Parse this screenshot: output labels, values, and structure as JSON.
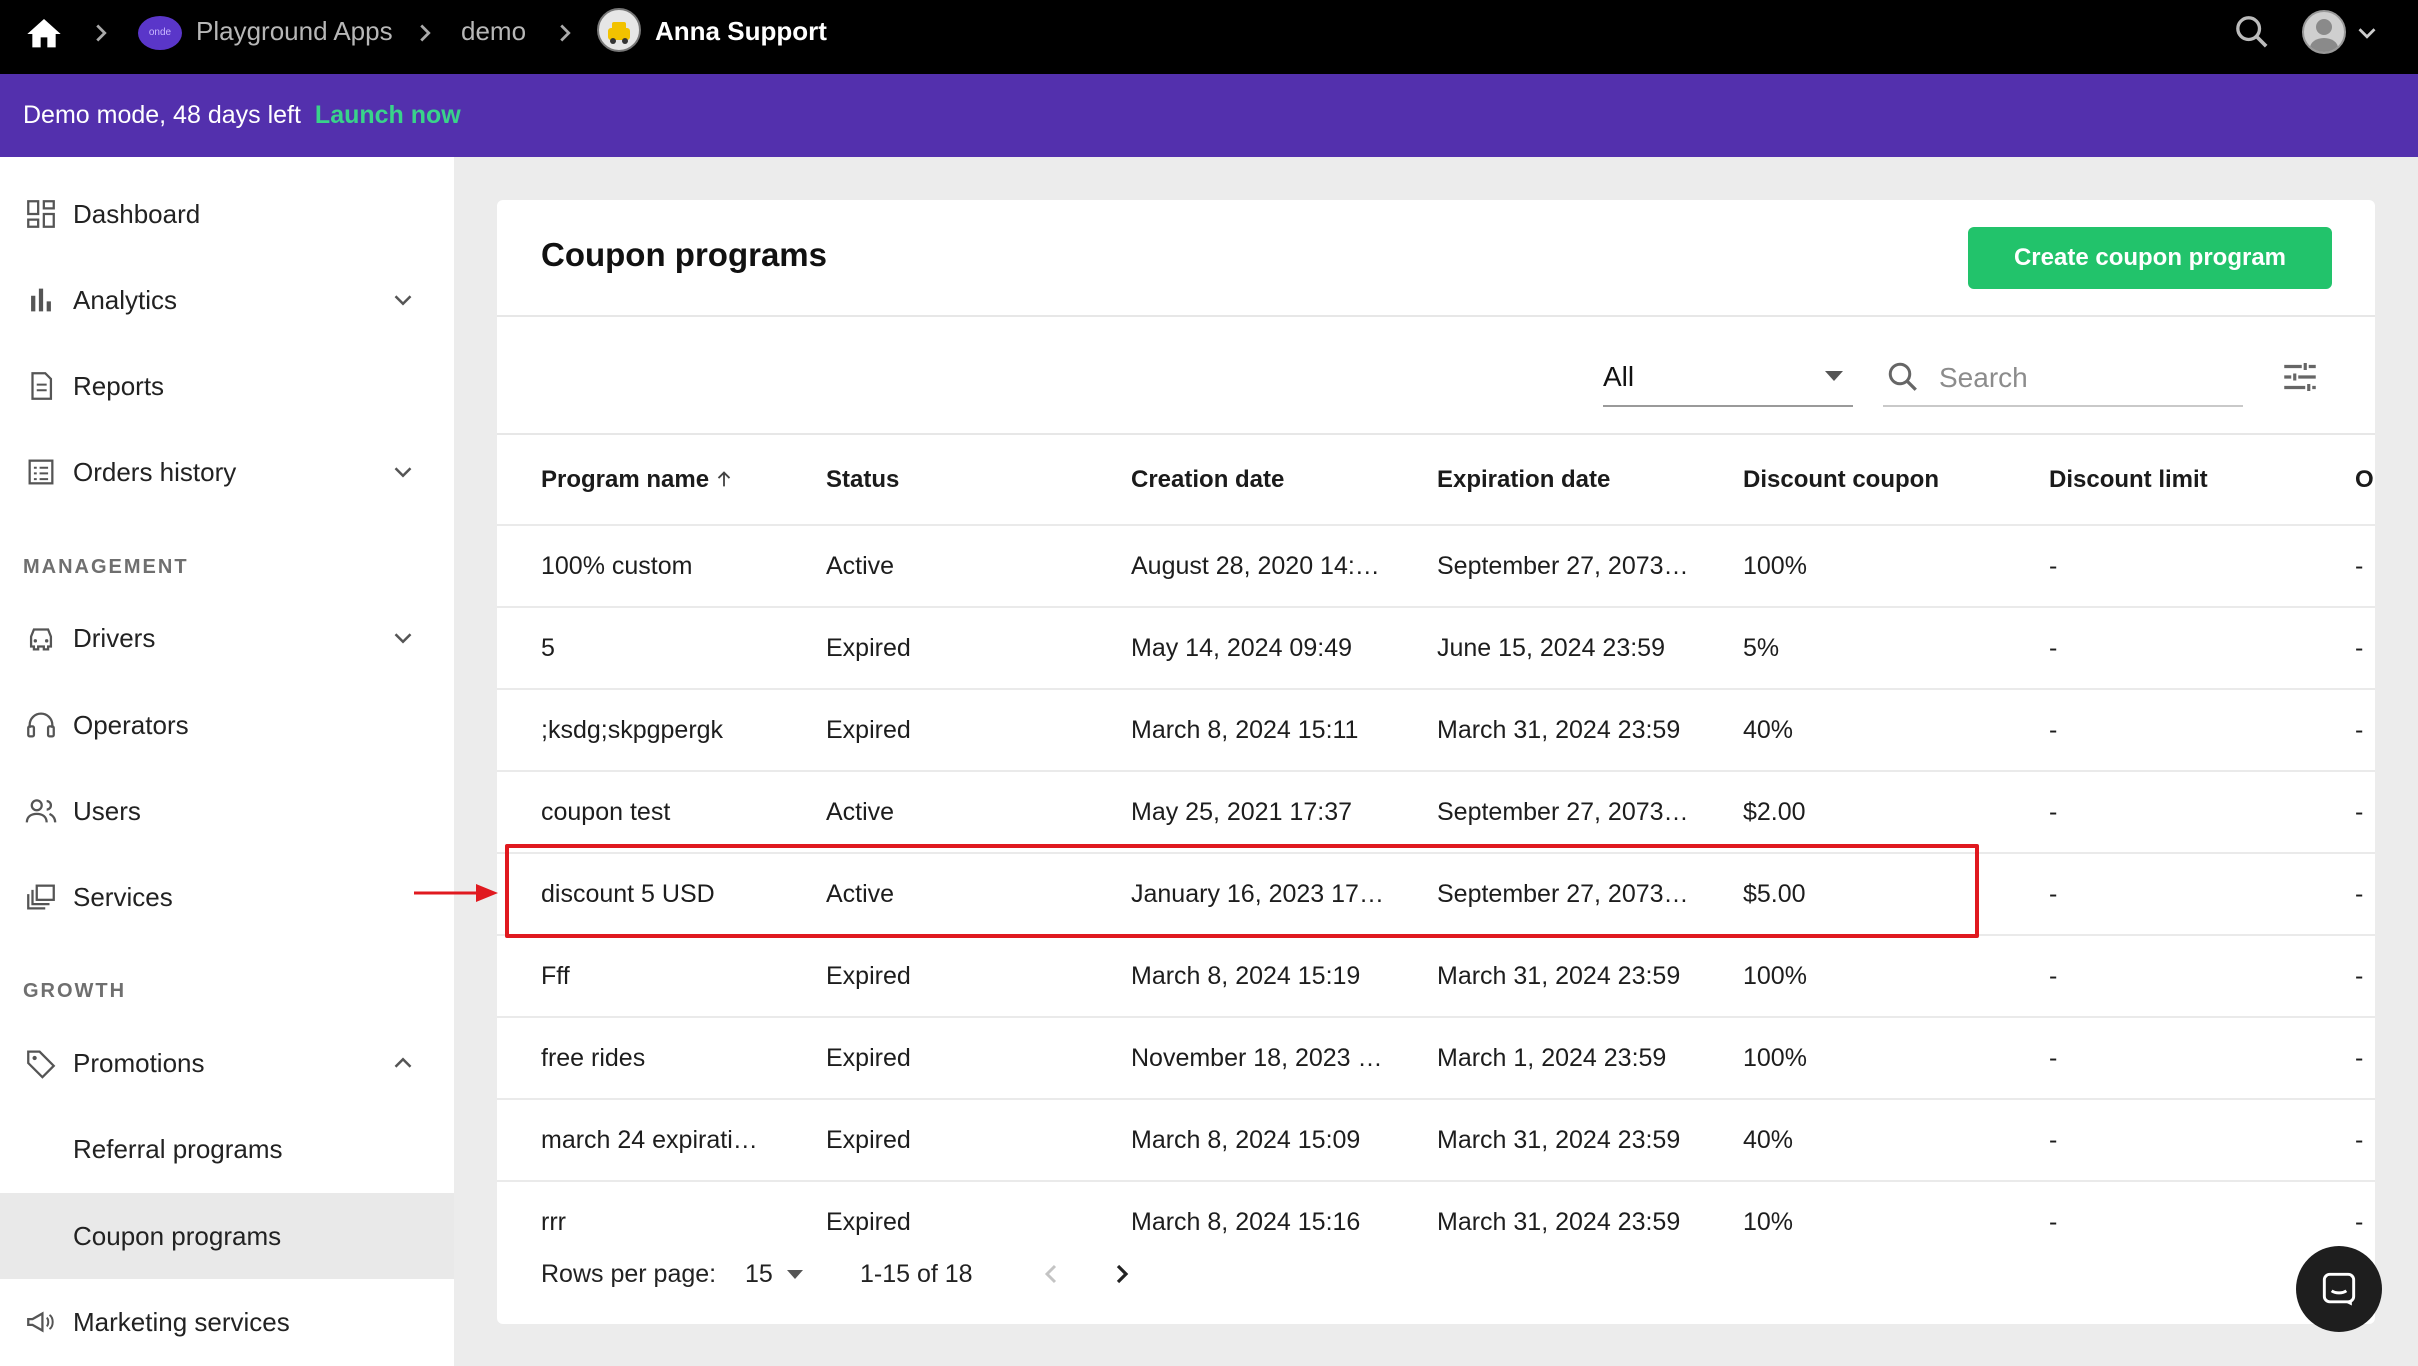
{
  "topbar": {
    "crumb_app": "Playground Apps",
    "crumb_env": "demo",
    "crumb_client": "Anna Support",
    "app_logo_text": "onde"
  },
  "demo": {
    "message": "Demo mode, 48 days left",
    "launch": "Launch now"
  },
  "sidebar": {
    "items": [
      {
        "label": "Dashboard"
      },
      {
        "label": "Analytics"
      },
      {
        "label": "Reports"
      },
      {
        "label": "Orders history"
      }
    ],
    "management_title": "MANAGEMENT",
    "management": [
      {
        "label": "Drivers"
      },
      {
        "label": "Operators"
      },
      {
        "label": "Users"
      },
      {
        "label": "Services"
      }
    ],
    "growth_title": "GROWTH",
    "growth": [
      {
        "label": "Promotions"
      },
      {
        "label": "Referral programs"
      },
      {
        "label": "Coupon programs"
      },
      {
        "label": "Marketing services"
      }
    ]
  },
  "main": {
    "title": "Coupon programs",
    "create_button": "Create coupon program",
    "filter_value": "All",
    "search_placeholder": "Search"
  },
  "table": {
    "columns": [
      "Program name",
      "Status",
      "Creation date",
      "Expiration date",
      "Discount coupon",
      "Discount limit",
      "O"
    ],
    "rows": [
      [
        "100% custom",
        "Active",
        "August 28, 2020 14:…",
        "September 27, 2073…",
        "100%",
        "-",
        "-"
      ],
      [
        "5",
        "Expired",
        "May 14, 2024 09:49",
        "June 15, 2024 23:59",
        "5%",
        "-",
        "-"
      ],
      [
        ";ksdg;skpgpergk",
        "Expired",
        "March 8, 2024 15:11",
        "March 31, 2024 23:59",
        "40%",
        "-",
        "-"
      ],
      [
        "coupon test",
        "Active",
        "May 25, 2021 17:37",
        "September 27, 2073…",
        "$2.00",
        "-",
        "-"
      ],
      [
        "discount 5 USD",
        "Active",
        "January 16, 2023 17…",
        "September 27, 2073…",
        "$5.00",
        "-",
        "-"
      ],
      [
        "Fff",
        "Expired",
        "March 8, 2024 15:19",
        "March 31, 2024 23:59",
        "100%",
        "-",
        "-"
      ],
      [
        "free rides",
        "Expired",
        "November 18, 2023 …",
        "March 1, 2024 23:59",
        "100%",
        "-",
        "-"
      ],
      [
        "march 24 expirati…",
        "Expired",
        "March 8, 2024 15:09",
        "March 31, 2024 23:59",
        "40%",
        "-",
        "-"
      ],
      [
        "rrr",
        "Expired",
        "March 8, 2024 15:16",
        "March 31, 2024 23:59",
        "10%",
        "-",
        "-"
      ]
    ]
  },
  "pagination": {
    "rows_label": "Rows per page:",
    "rows_value": "15",
    "range": "1-15 of 18"
  },
  "colors": {
    "topbar": "#000000",
    "demo_bar": "#5330ad",
    "accent_green": "#22c36b",
    "launch_green": "#39d38a",
    "highlight_red": "#e0191f"
  }
}
